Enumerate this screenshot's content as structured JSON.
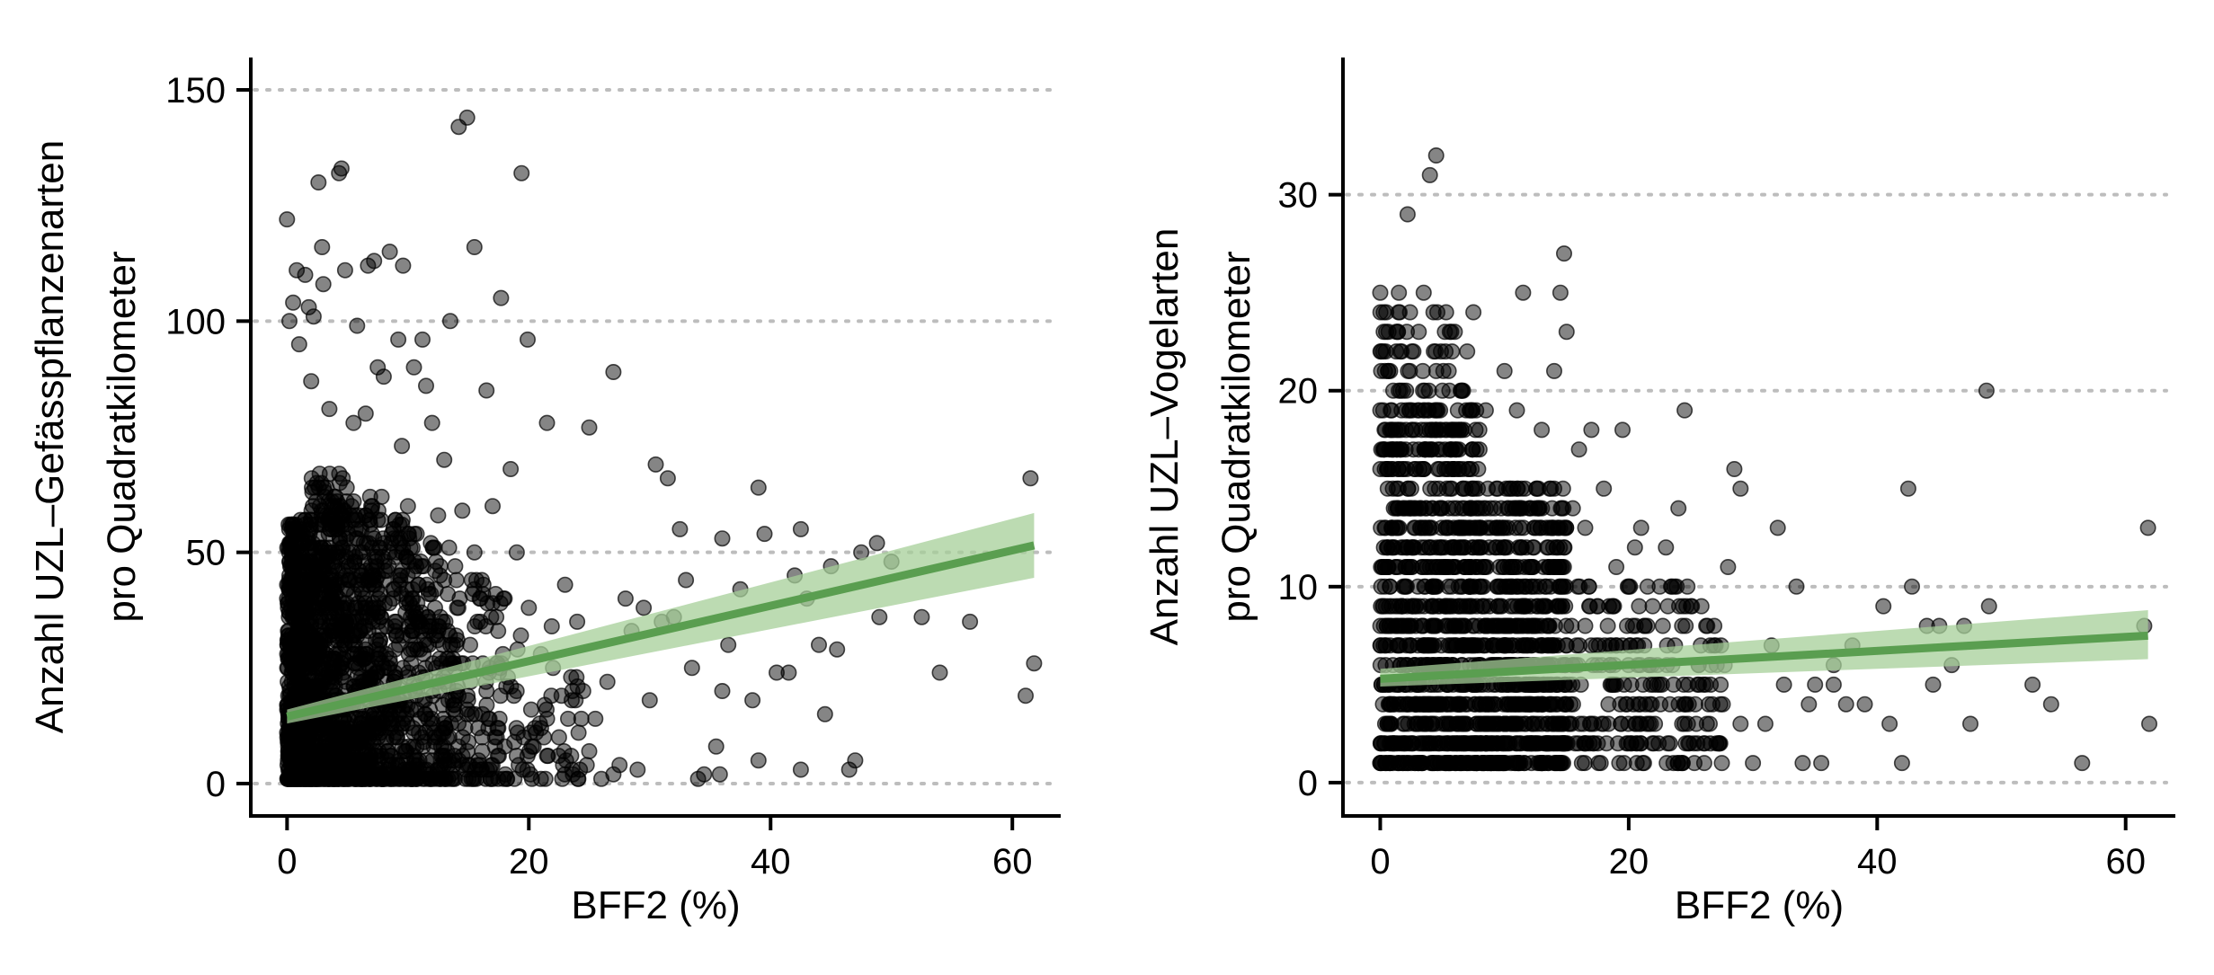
{
  "figure": {
    "background": "#ffffff",
    "point_color": "#000000",
    "line_color": "#5a9e50",
    "band_color": "#a6cf98",
    "grid_color": "#bdbdbd"
  },
  "chart_data": [
    {
      "type": "scatter",
      "id": "left",
      "xlabel": "BFF2 (%)",
      "ylabel_lines": [
        "Anzahl UZL–Gefässpflanzenarten",
        "pro Quadratkilometer"
      ],
      "xlim": [
        -3,
        64
      ],
      "ylim": [
        -7,
        157
      ],
      "xticks": [
        0,
        20,
        40,
        60
      ],
      "xtick_labels": [
        "0",
        "20",
        "40",
        "60"
      ],
      "yticks": [
        0,
        50,
        100,
        150
      ],
      "ytick_labels": [
        "0",
        "50",
        "100",
        "150"
      ],
      "grid": "horizontal dotted",
      "trend": {
        "x": [
          0,
          61.8
        ],
        "y": [
          14.5,
          51.5
        ],
        "band_lower": [
          13.0,
          44.5
        ],
        "band_upper": [
          16.0,
          58.5
        ]
      },
      "highlight_points": [
        [
          0,
          122
        ],
        [
          0.8,
          111
        ],
        [
          1.5,
          110
        ],
        [
          2.6,
          130
        ],
        [
          2.9,
          116
        ],
        [
          4.3,
          132
        ],
        [
          4.5,
          133
        ],
        [
          5.8,
          99
        ],
        [
          6.7,
          112
        ],
        [
          7.2,
          113
        ],
        [
          8.5,
          115
        ],
        [
          9.2,
          96
        ],
        [
          9.6,
          112
        ],
        [
          11.2,
          96
        ],
        [
          13.5,
          100
        ],
        [
          14.2,
          142
        ],
        [
          14.9,
          144
        ],
        [
          15.5,
          116
        ],
        [
          17.7,
          105
        ],
        [
          19.4,
          132
        ],
        [
          19.9,
          96
        ],
        [
          16.5,
          85
        ],
        [
          21.5,
          78
        ],
        [
          25.0,
          77
        ],
        [
          27.0,
          89
        ],
        [
          30.5,
          69
        ],
        [
          31.5,
          66
        ],
        [
          32.5,
          55
        ],
        [
          36.0,
          53
        ],
        [
          39.0,
          64
        ],
        [
          39.5,
          54
        ],
        [
          42.5,
          55
        ],
        [
          42.0,
          45
        ],
        [
          44.0,
          30
        ],
        [
          45.5,
          29
        ],
        [
          48.8,
          52
        ],
        [
          49.0,
          36
        ],
        [
          52.5,
          36
        ],
        [
          54.0,
          24
        ],
        [
          56.5,
          35
        ],
        [
          61.5,
          66
        ],
        [
          61.8,
          26
        ],
        [
          61.1,
          19
        ],
        [
          46.5,
          3
        ],
        [
          47.0,
          5
        ],
        [
          44.5,
          15
        ],
        [
          42.5,
          3
        ],
        [
          41.5,
          24
        ],
        [
          39.0,
          5
        ],
        [
          36.0,
          20
        ],
        [
          36.5,
          30
        ],
        [
          35.5,
          8
        ],
        [
          34.5,
          2
        ],
        [
          34.0,
          1
        ],
        [
          35.8,
          2
        ],
        [
          33.5,
          25
        ],
        [
          31.0,
          35
        ],
        [
          30.0,
          18
        ],
        [
          28.5,
          33
        ],
        [
          27.5,
          4
        ],
        [
          26.0,
          1
        ],
        [
          25.0,
          7
        ],
        [
          24.0,
          35
        ],
        [
          23.0,
          43
        ],
        [
          22.5,
          10
        ],
        [
          21.0,
          28
        ],
        [
          20.5,
          12
        ],
        [
          19.0,
          50
        ],
        [
          18.5,
          68
        ],
        [
          17.0,
          60
        ],
        [
          15.5,
          50
        ],
        [
          14.5,
          59
        ],
        [
          13.0,
          70
        ],
        [
          12.0,
          78
        ],
        [
          11.5,
          86
        ],
        [
          10.5,
          90
        ],
        [
          9.5,
          73
        ],
        [
          8.0,
          88
        ],
        [
          7.5,
          90
        ],
        [
          6.5,
          80
        ],
        [
          5.5,
          78
        ],
        [
          3.5,
          81
        ],
        [
          2.0,
          87
        ],
        [
          1.0,
          95
        ],
        [
          0.2,
          100
        ],
        [
          0.5,
          104
        ],
        [
          3.0,
          108
        ],
        [
          4.8,
          111
        ],
        [
          2.2,
          101
        ],
        [
          1.8,
          103
        ],
        [
          10.0,
          60
        ],
        [
          12.5,
          58
        ],
        [
          16.0,
          40
        ],
        [
          18.0,
          40
        ],
        [
          20.0,
          38
        ],
        [
          22.0,
          25
        ],
        [
          24.5,
          20
        ],
        [
          26.5,
          22
        ],
        [
          28.0,
          40
        ],
        [
          29.5,
          38
        ],
        [
          32.0,
          36
        ],
        [
          33.0,
          44
        ],
        [
          37.5,
          42
        ],
        [
          38.5,
          18
        ],
        [
          40.5,
          24
        ],
        [
          43.0,
          40
        ],
        [
          45.0,
          47
        ],
        [
          47.5,
          50
        ],
        [
          50.0,
          48
        ],
        [
          14.0,
          30
        ],
        [
          13.0,
          44
        ],
        [
          16.5,
          20
        ],
        [
          18.0,
          8
        ],
        [
          19.5,
          3
        ],
        [
          21.0,
          1
        ],
        [
          23.5,
          6
        ],
        [
          25.5,
          14
        ],
        [
          27.0,
          2
        ],
        [
          29.0,
          3
        ]
      ],
      "dense_cluster": [
        {
          "x_range": [
            0,
            2
          ],
          "y_range": [
            0,
            57
          ],
          "count": 650
        },
        {
          "x_range": [
            2,
            5
          ],
          "y_range": [
            0,
            67
          ],
          "count": 550
        },
        {
          "x_range": [
            5,
            8
          ],
          "y_range": [
            0,
            62
          ],
          "count": 350
        },
        {
          "x_range": [
            8,
            11
          ],
          "y_range": [
            0,
            57
          ],
          "count": 230
        },
        {
          "x_range": [
            11,
            14
          ],
          "y_range": [
            0,
            52
          ],
          "count": 150
        },
        {
          "x_range": [
            14,
            18
          ],
          "y_range": [
            0,
            45
          ],
          "count": 100
        },
        {
          "x_range": [
            18,
            25
          ],
          "y_range": [
            0,
            35
          ],
          "count": 60
        }
      ]
    },
    {
      "type": "scatter",
      "id": "right",
      "xlabel": "BFF2 (%)",
      "ylabel_lines": [
        "Anzahl UZL–Vogelarten",
        "pro Quadratkilometer"
      ],
      "xlim": [
        -3,
        64
      ],
      "ylim": [
        -1.7,
        37
      ],
      "xticks": [
        0,
        20,
        40,
        60
      ],
      "xtick_labels": [
        "0",
        "20",
        "40",
        "60"
      ],
      "yticks": [
        0,
        10,
        20,
        30
      ],
      "ytick_labels": [
        "0",
        "10",
        "20",
        "30"
      ],
      "grid": "horizontal dotted",
      "trend": {
        "x": [
          0,
          61.8
        ],
        "y": [
          5.3,
          7.5
        ],
        "band_lower": [
          4.9,
          6.3
        ],
        "band_upper": [
          5.8,
          8.8
        ]
      },
      "highlight_points": [
        [
          4.5,
          32
        ],
        [
          4.0,
          31
        ],
        [
          2.2,
          29
        ],
        [
          14.8,
          27
        ],
        [
          0.0,
          25
        ],
        [
          1.5,
          25
        ],
        [
          3.5,
          25
        ],
        [
          11.5,
          25
        ],
        [
          14.5,
          25
        ],
        [
          15.0,
          23
        ],
        [
          14.0,
          21
        ],
        [
          7.5,
          24
        ],
        [
          6.0,
          23
        ],
        [
          7.0,
          22
        ],
        [
          10.0,
          21
        ],
        [
          11.0,
          19
        ],
        [
          8.5,
          19
        ],
        [
          13.0,
          18
        ],
        [
          17.0,
          18
        ],
        [
          19.5,
          18
        ],
        [
          18.0,
          15
        ],
        [
          24.5,
          19
        ],
        [
          48.8,
          20
        ],
        [
          28.5,
          16
        ],
        [
          29.0,
          15
        ],
        [
          32.0,
          13
        ],
        [
          42.5,
          15
        ],
        [
          36.5,
          5
        ],
        [
          41.0,
          3
        ],
        [
          42.0,
          1
        ],
        [
          47.5,
          3
        ],
        [
          52.5,
          5
        ],
        [
          54.0,
          4
        ],
        [
          56.5,
          1
        ],
        [
          61.5,
          8
        ],
        [
          61.8,
          13
        ],
        [
          61.9,
          3
        ],
        [
          46.0,
          6
        ],
        [
          45.0,
          8
        ],
        [
          44.0,
          8
        ],
        [
          42.8,
          10
        ],
        [
          40.5,
          9
        ],
        [
          38.0,
          7
        ],
        [
          36.5,
          6
        ],
        [
          35.0,
          5
        ],
        [
          34.5,
          4
        ],
        [
          34.0,
          1
        ],
        [
          33.5,
          10
        ],
        [
          31.5,
          7
        ],
        [
          30.0,
          1
        ],
        [
          29.0,
          3
        ],
        [
          28.0,
          11
        ],
        [
          27.5,
          1
        ],
        [
          26.0,
          5
        ],
        [
          25.0,
          9
        ],
        [
          24.0,
          14
        ],
        [
          23.0,
          12
        ],
        [
          22.5,
          10
        ],
        [
          21.5,
          8
        ],
        [
          20.5,
          12
        ],
        [
          20.0,
          10
        ],
        [
          21.0,
          13
        ],
        [
          19.0,
          11
        ],
        [
          18.5,
          6
        ],
        [
          17.5,
          9
        ],
        [
          16.5,
          13
        ],
        [
          16.0,
          17
        ],
        [
          15.5,
          14
        ],
        [
          49.0,
          9
        ],
        [
          47.0,
          8
        ],
        [
          44.5,
          5
        ],
        [
          39.0,
          4
        ],
        [
          37.5,
          4
        ],
        [
          35.5,
          1
        ],
        [
          32.5,
          5
        ],
        [
          31.0,
          3
        ],
        [
          27.0,
          7
        ]
      ],
      "dense_cluster": [
        {
          "x_range": [
            0,
            15
          ],
          "y_values": [
            1,
            15
          ],
          "count": 1300
        },
        {
          "x_range": [
            0,
            8
          ],
          "y_values": [
            16,
            20
          ],
          "count": 160
        },
        {
          "x_range": [
            0,
            6
          ],
          "y_values": [
            21,
            24
          ],
          "count": 45
        },
        {
          "x_range": [
            15,
            28
          ],
          "y_values": [
            1,
            10
          ],
          "count": 220
        }
      ]
    }
  ]
}
